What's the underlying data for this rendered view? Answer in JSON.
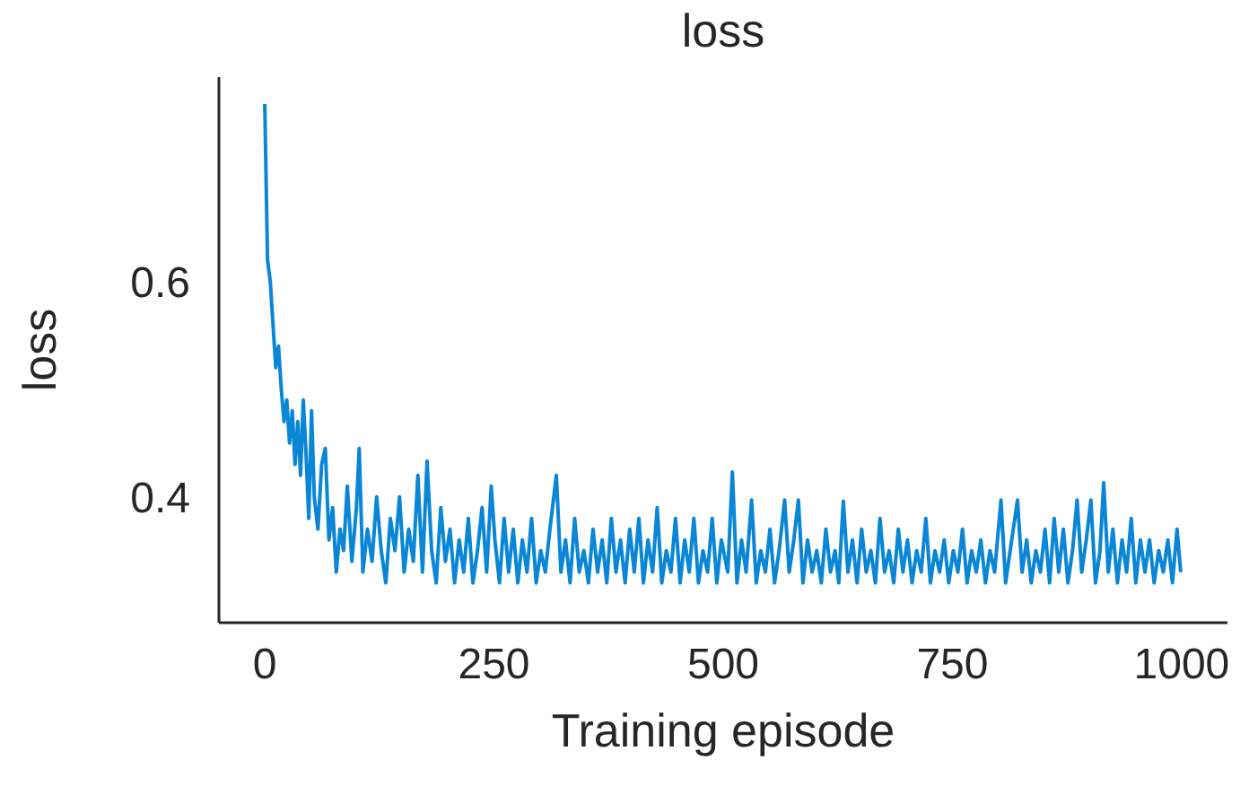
{
  "chart_data": {
    "type": "line",
    "title": "loss",
    "xlabel": "Training episode",
    "ylabel": "loss",
    "xlim": [
      -50,
      1050
    ],
    "xticks": [
      0,
      250,
      500,
      750,
      1000
    ],
    "ylim": [
      0.283,
      0.79
    ],
    "yticks": [
      0.4,
      0.6
    ],
    "grid": false,
    "legend": false,
    "marker": "none",
    "line_style": "solid",
    "series": [
      {
        "color": "#0a86d6",
        "x": [
          0,
          3,
          6,
          9,
          12,
          15,
          18,
          21,
          24,
          27,
          30,
          33,
          36,
          39,
          42,
          45,
          48,
          51,
          54,
          58,
          62,
          66,
          70,
          74,
          78,
          82,
          86,
          90,
          95,
          100,
          103,
          107,
          112,
          117,
          122,
          127,
          132,
          137,
          142,
          147,
          152,
          157,
          162,
          167,
          172,
          177,
          182,
          187,
          192,
          197,
          202,
          207,
          212,
          217,
          222,
          227,
          232,
          237,
          242,
          247,
          251,
          256,
          261,
          266,
          271,
          276,
          281,
          286,
          291,
          296,
          301,
          306,
          311,
          318,
          323,
          328,
          333,
          338,
          343,
          348,
          353,
          358,
          363,
          368,
          373,
          378,
          383,
          388,
          393,
          398,
          403,
          408,
          413,
          418,
          423,
          428,
          433,
          438,
          443,
          448,
          453,
          458,
          463,
          468,
          473,
          478,
          483,
          488,
          493,
          498,
          505,
          510,
          515,
          520,
          525,
          531,
          536,
          541,
          546,
          551,
          556,
          561,
          567,
          572,
          577,
          582,
          587,
          592,
          597,
          602,
          607,
          612,
          617,
          622,
          626,
          631,
          636,
          641,
          646,
          651,
          656,
          661,
          666,
          671,
          676,
          681,
          686,
          691,
          696,
          701,
          706,
          711,
          716,
          721,
          726,
          731,
          736,
          741,
          746,
          751,
          756,
          761,
          766,
          771,
          776,
          781,
          786,
          791,
          796,
          803,
          808,
          813,
          821,
          826,
          831,
          836,
          841,
          846,
          851,
          856,
          861,
          866,
          871,
          876,
          881,
          886,
          891,
          896,
          901,
          906,
          911,
          915,
          920,
          925,
          930,
          935,
          940,
          945,
          950,
          955,
          960,
          965,
          970,
          975,
          980,
          985,
          990,
          995,
          999
        ],
        "values": [
          0.765,
          0.62,
          0.6,
          0.56,
          0.52,
          0.54,
          0.5,
          0.47,
          0.49,
          0.45,
          0.48,
          0.43,
          0.47,
          0.42,
          0.49,
          0.44,
          0.38,
          0.48,
          0.4,
          0.37,
          0.43,
          0.445,
          0.36,
          0.39,
          0.33,
          0.37,
          0.35,
          0.41,
          0.34,
          0.39,
          0.445,
          0.33,
          0.37,
          0.34,
          0.4,
          0.35,
          0.32,
          0.38,
          0.35,
          0.4,
          0.33,
          0.37,
          0.34,
          0.42,
          0.33,
          0.433,
          0.35,
          0.32,
          0.39,
          0.34,
          0.37,
          0.32,
          0.36,
          0.33,
          0.38,
          0.32,
          0.35,
          0.39,
          0.33,
          0.41,
          0.36,
          0.32,
          0.38,
          0.33,
          0.37,
          0.32,
          0.36,
          0.33,
          0.38,
          0.32,
          0.35,
          0.33,
          0.37,
          0.42,
          0.33,
          0.36,
          0.32,
          0.38,
          0.33,
          0.35,
          0.32,
          0.37,
          0.33,
          0.36,
          0.32,
          0.38,
          0.33,
          0.36,
          0.32,
          0.37,
          0.33,
          0.38,
          0.32,
          0.36,
          0.33,
          0.39,
          0.32,
          0.35,
          0.33,
          0.38,
          0.32,
          0.36,
          0.33,
          0.38,
          0.32,
          0.35,
          0.33,
          0.38,
          0.32,
          0.36,
          0.33,
          0.423,
          0.32,
          0.36,
          0.33,
          0.397,
          0.32,
          0.35,
          0.33,
          0.37,
          0.32,
          0.35,
          0.397,
          0.33,
          0.36,
          0.397,
          0.32,
          0.36,
          0.33,
          0.35,
          0.32,
          0.37,
          0.33,
          0.35,
          0.32,
          0.396,
          0.33,
          0.36,
          0.32,
          0.37,
          0.33,
          0.35,
          0.32,
          0.38,
          0.33,
          0.35,
          0.32,
          0.37,
          0.33,
          0.36,
          0.32,
          0.35,
          0.33,
          0.38,
          0.32,
          0.35,
          0.33,
          0.36,
          0.32,
          0.35,
          0.33,
          0.37,
          0.32,
          0.35,
          0.33,
          0.36,
          0.32,
          0.35,
          0.33,
          0.397,
          0.32,
          0.35,
          0.397,
          0.33,
          0.36,
          0.32,
          0.35,
          0.33,
          0.37,
          0.32,
          0.38,
          0.33,
          0.37,
          0.32,
          0.35,
          0.397,
          0.33,
          0.36,
          0.397,
          0.32,
          0.35,
          0.413,
          0.33,
          0.37,
          0.32,
          0.36,
          0.33,
          0.38,
          0.32,
          0.36,
          0.33,
          0.36,
          0.32,
          0.35,
          0.33,
          0.36,
          0.32,
          0.37,
          0.33
        ]
      }
    ]
  }
}
